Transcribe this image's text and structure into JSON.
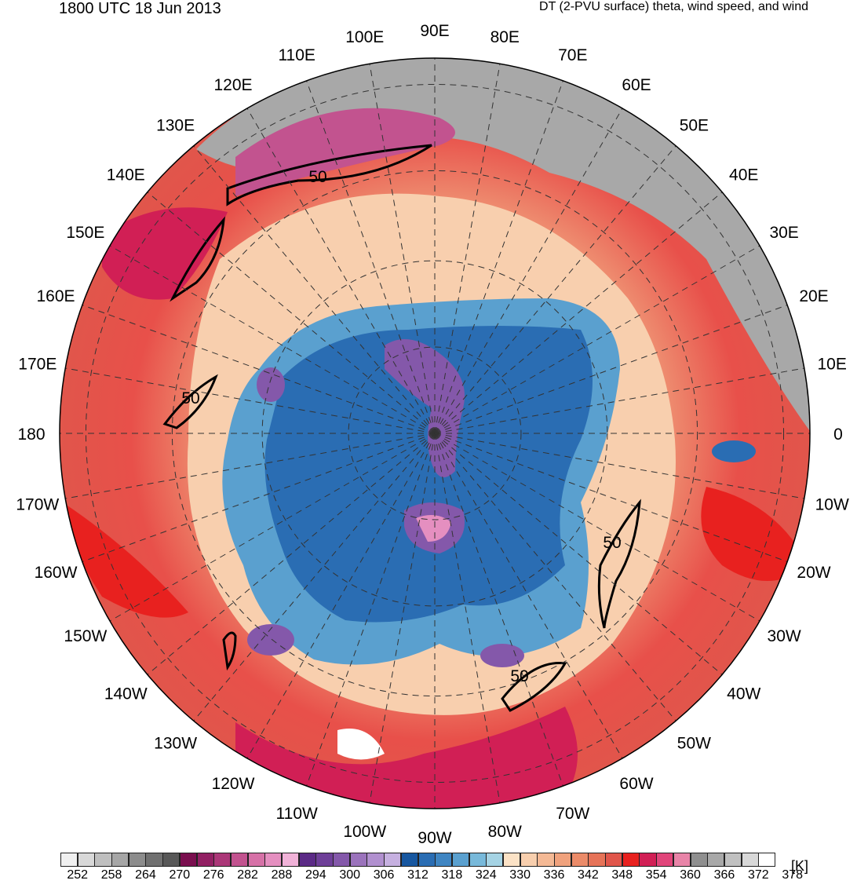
{
  "header": {
    "valid_time": "1800 UTC 18 Jun 2013",
    "product": "DT (2-PVU surface) theta, wind speed, and wind"
  },
  "map": {
    "projection": "north-polar-stereographic",
    "longitude_labels": [
      "0",
      "10E",
      "20E",
      "30E",
      "40E",
      "50E",
      "60E",
      "70E",
      "80E",
      "90E",
      "100E",
      "110E",
      "120E",
      "130E",
      "140E",
      "150E",
      "160E",
      "170E",
      "180",
      "170W",
      "160W",
      "150W",
      "140W",
      "130W",
      "120W",
      "110W",
      "100W",
      "90W",
      "80W",
      "70W",
      "60W",
      "50W",
      "40W",
      "30W",
      "20W",
      "10W"
    ],
    "contour_label": "50",
    "colors": {
      "warm": "#e8504a",
      "cold": "#2f6fb0",
      "purple": "#8a5cb8",
      "gray": "#a0a0a0",
      "peach": "#f4c4a4"
    }
  },
  "colorbar": {
    "unit": "[K]",
    "tick_labels": [
      "252",
      "258",
      "264",
      "270",
      "276",
      "282",
      "288",
      "294",
      "300",
      "306",
      "312",
      "318",
      "324",
      "330",
      "336",
      "342",
      "348",
      "354",
      "360",
      "366",
      "372",
      "378"
    ],
    "colors": [
      "#f0f0f0",
      "#d8d8d8",
      "#bfbfbf",
      "#a6a6a6",
      "#8c8c8c",
      "#707070",
      "#585858",
      "#7a0f4f",
      "#922063",
      "#ab3778",
      "#c2538f",
      "#d671a7",
      "#e58fc0",
      "#f1b2d8",
      "#5b2a86",
      "#6e3f98",
      "#8458aa",
      "#9b73bc",
      "#b190cf",
      "#c6b0e0",
      "#1757a0",
      "#2a6db3",
      "#3f85c2",
      "#5aa0cf",
      "#78b9da",
      "#a5d3e4",
      "#fbe2c6",
      "#f8cfae",
      "#f4b995",
      "#f0a27d",
      "#eb8b69",
      "#e67358",
      "#e0564b",
      "#e8211f",
      "#d11f55",
      "#e0457a",
      "#e884a8",
      "#8f8f8f",
      "#a8a8a8",
      "#c0c0c0",
      "#d8d8d8",
      "#ffffff"
    ]
  }
}
